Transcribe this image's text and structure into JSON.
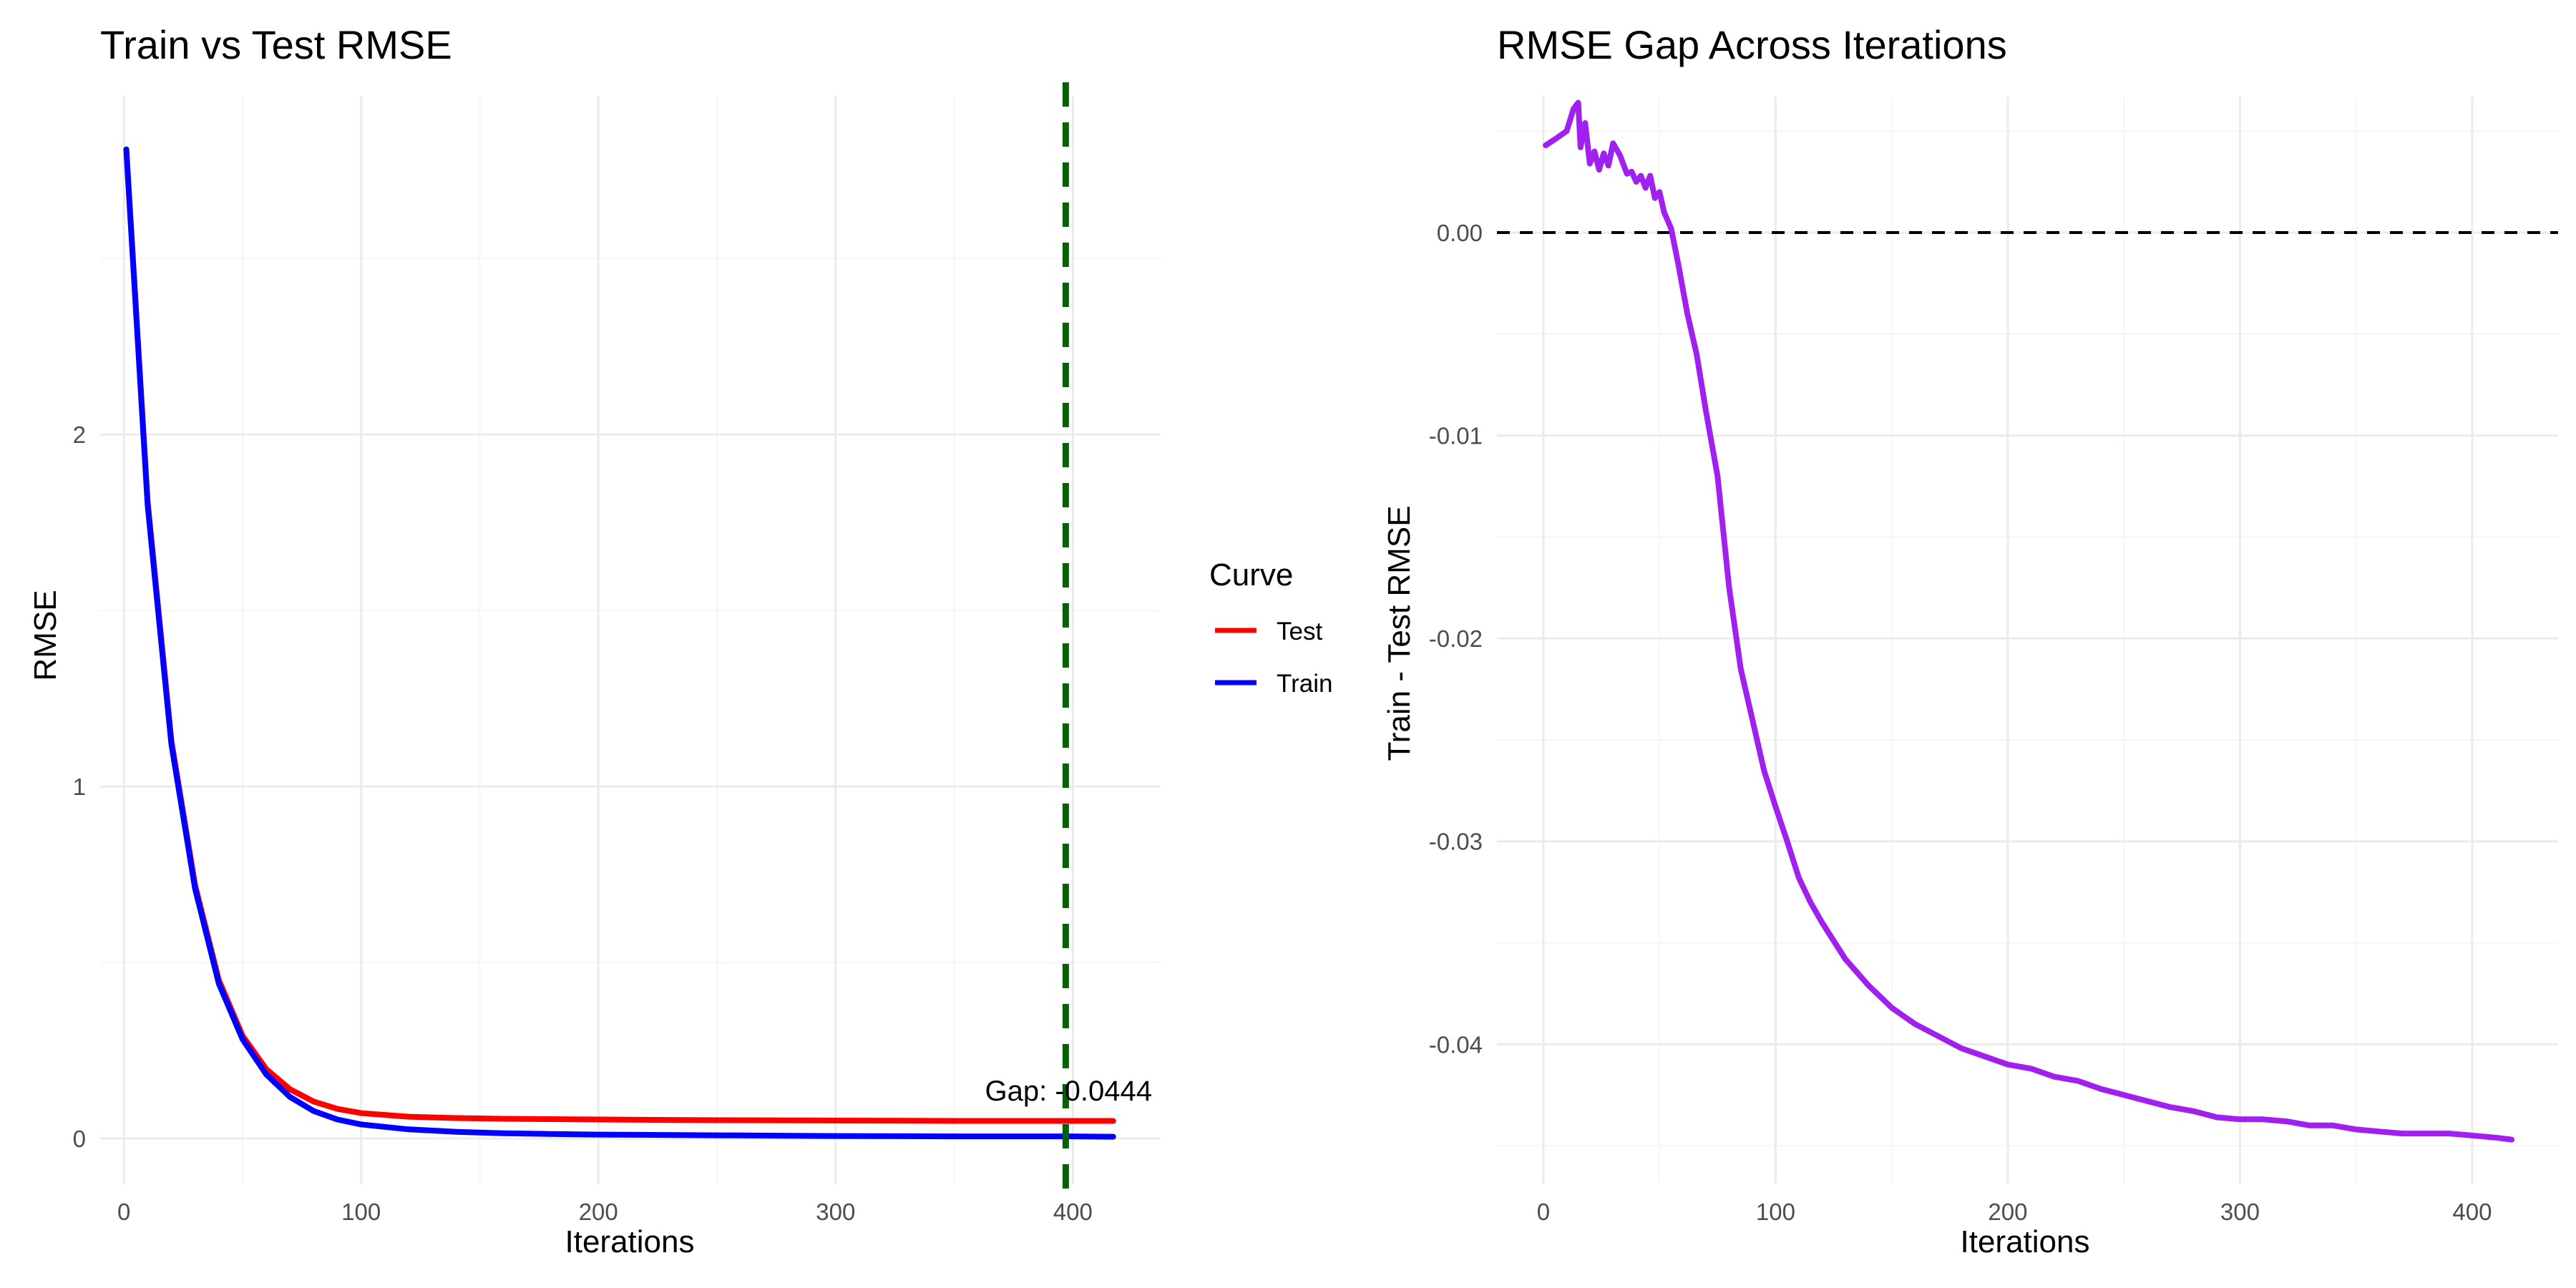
{
  "colors": {
    "test": "#ff0000",
    "train": "#0000ff",
    "gap": "#a020f0",
    "best_iter_line": "#006400",
    "zero_line": "#000000",
    "grid_major": "#ebebeb",
    "grid_minor": "#f5f5f5"
  },
  "legend": {
    "title": "Curve",
    "entries": [
      {
        "label": "Test",
        "color": "#ff0000"
      },
      {
        "label": "Train",
        "color": "#0000ff"
      }
    ]
  },
  "chart_data": [
    {
      "type": "line",
      "title": "Train vs Test RMSE",
      "xlabel": "Iterations",
      "ylabel": "RMSE",
      "xlim": [
        -10,
        437
      ],
      "ylim": [
        -0.13,
        2.96
      ],
      "xticks": [
        0,
        100,
        200,
        300,
        400
      ],
      "yticks": [
        0,
        1,
        2
      ],
      "xtick_labels": [
        "0",
        "100",
        "200",
        "300",
        "400"
      ],
      "ytick_labels": [
        "0",
        "1",
        "2"
      ],
      "grid": true,
      "legend_position": "right",
      "vline": {
        "x": 397,
        "style": "dashed",
        "color": "#006400"
      },
      "annotation": {
        "text": "Gap: -0.0444",
        "x": 397,
        "y": 0.127
      },
      "series": [
        {
          "name": "Test",
          "color": "#ff0000",
          "x": [
            1,
            10,
            20,
            30,
            40,
            50,
            60,
            70,
            80,
            90,
            100,
            120,
            140,
            160,
            180,
            200,
            250,
            300,
            350,
            400,
            417
          ],
          "y": [
            2.81,
            1.81,
            1.13,
            0.72,
            0.45,
            0.292,
            0.197,
            0.14,
            0.105,
            0.084,
            0.072,
            0.062,
            0.058,
            0.056,
            0.055,
            0.054,
            0.052,
            0.051,
            0.05,
            0.05,
            0.05
          ]
        },
        {
          "name": "Train",
          "color": "#0000ff",
          "x": [
            1,
            10,
            20,
            30,
            40,
            50,
            60,
            70,
            80,
            90,
            100,
            120,
            140,
            160,
            180,
            200,
            250,
            300,
            350,
            400,
            417
          ],
          "y": [
            2.81,
            1.8,
            1.12,
            0.71,
            0.44,
            0.282,
            0.182,
            0.118,
            0.078,
            0.054,
            0.04,
            0.026,
            0.019,
            0.015,
            0.013,
            0.011,
            0.009,
            0.007,
            0.006,
            0.006,
            0.005
          ]
        }
      ]
    },
    {
      "type": "line",
      "title": "RMSE Gap Across Iterations",
      "xlabel": "Iterations",
      "ylabel": "Train - Test RMSE",
      "xlim": [
        -20,
        437
      ],
      "ylim": [
        -0.0469,
        0.0067
      ],
      "xticks": [
        0,
        100,
        200,
        300,
        400
      ],
      "yticks": [
        0,
        -0.01,
        -0.02,
        -0.03,
        -0.04
      ],
      "xtick_labels": [
        "0",
        "100",
        "200",
        "300",
        "400"
      ],
      "ytick_labels": [
        "0.00",
        "-0.01",
        "-0.02",
        "-0.03",
        "-0.04"
      ],
      "grid": true,
      "hline": {
        "y": 0,
        "style": "dashed",
        "color": "#000000"
      },
      "series": [
        {
          "color": "#a020f0",
          "x": [
            1,
            5,
            10,
            13,
            15,
            16,
            18,
            20,
            22,
            24,
            26,
            28,
            30,
            33,
            36,
            38,
            40,
            42,
            44,
            46,
            48,
            50,
            52,
            55,
            58,
            62,
            66,
            70,
            75,
            80,
            85,
            90,
            95,
            100,
            105,
            110,
            115,
            120,
            130,
            140,
            150,
            160,
            170,
            180,
            190,
            200,
            210,
            220,
            230,
            240,
            250,
            260,
            270,
            280,
            290,
            300,
            310,
            320,
            330,
            340,
            350,
            360,
            370,
            380,
            390,
            400,
            410,
            417
          ],
          "y": [
            0.0043,
            0.0046,
            0.005,
            0.0061,
            0.0064,
            0.0042,
            0.0054,
            0.0034,
            0.004,
            0.0031,
            0.0039,
            0.0033,
            0.0044,
            0.0038,
            0.0029,
            0.003,
            0.0025,
            0.0028,
            0.0022,
            0.0028,
            0.0017,
            0.002,
            0.001,
            0.0002,
            -0.0015,
            -0.004,
            -0.006,
            -0.0088,
            -0.012,
            -0.0175,
            -0.0215,
            -0.024,
            -0.0265,
            -0.0283,
            -0.03,
            -0.0318,
            -0.033,
            -0.034,
            -0.0358,
            -0.0371,
            -0.0382,
            -0.039,
            -0.0396,
            -0.0402,
            -0.0406,
            -0.041,
            -0.0412,
            -0.0416,
            -0.0418,
            -0.0422,
            -0.0425,
            -0.0428,
            -0.0431,
            -0.0433,
            -0.0436,
            -0.0437,
            -0.0437,
            -0.0438,
            -0.044,
            -0.044,
            -0.0442,
            -0.0443,
            -0.0444,
            -0.0444,
            -0.0444,
            -0.0445,
            -0.0446,
            -0.0447
          ]
        }
      ]
    }
  ]
}
